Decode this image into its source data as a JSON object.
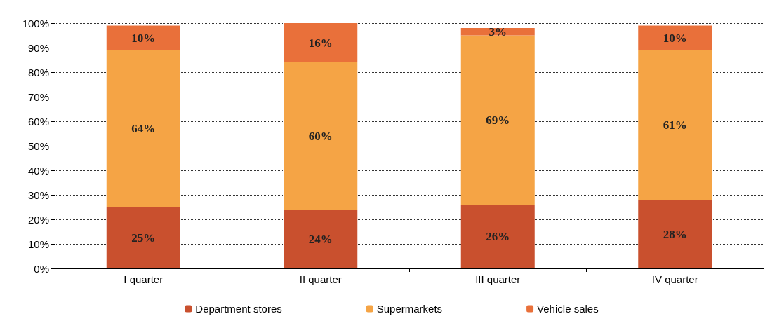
{
  "chart_data": {
    "type": "bar",
    "stacked": true,
    "categories": [
      "I quarter",
      "II quarter",
      "III quarter",
      "IV quarter"
    ],
    "series": [
      {
        "name": "Department stores",
        "color": "#c9502e",
        "values": [
          25,
          24,
          26,
          28
        ],
        "value_labels": [
          "25%",
          "24%",
          "26%",
          "28%"
        ]
      },
      {
        "name": "Supermarkets",
        "color": "#f5a445",
        "values": [
          64,
          60,
          69,
          61
        ],
        "value_labels": [
          "64%",
          "60%",
          "69%",
          "61%"
        ]
      },
      {
        "name": "Vehicle sales",
        "color": "#e9703a",
        "values": [
          10,
          16,
          3,
          10
        ],
        "value_labels": [
          "10%",
          "16%",
          "3%",
          "10%"
        ]
      }
    ],
    "ylim": [
      0,
      100
    ],
    "yticks": [
      {
        "value": 0,
        "label": "0%"
      },
      {
        "value": 10,
        "label": "10%"
      },
      {
        "value": 20,
        "label": "20%"
      },
      {
        "value": 30,
        "label": "30%"
      },
      {
        "value": 40,
        "label": "40%"
      },
      {
        "value": 50,
        "label": "50%"
      },
      {
        "value": 60,
        "label": "60%"
      },
      {
        "value": 70,
        "label": "70%"
      },
      {
        "value": 80,
        "label": "80%"
      },
      {
        "value": 90,
        "label": "90%"
      },
      {
        "value": 100,
        "label": "100%"
      }
    ],
    "grid": "y",
    "legend": "bottom"
  }
}
